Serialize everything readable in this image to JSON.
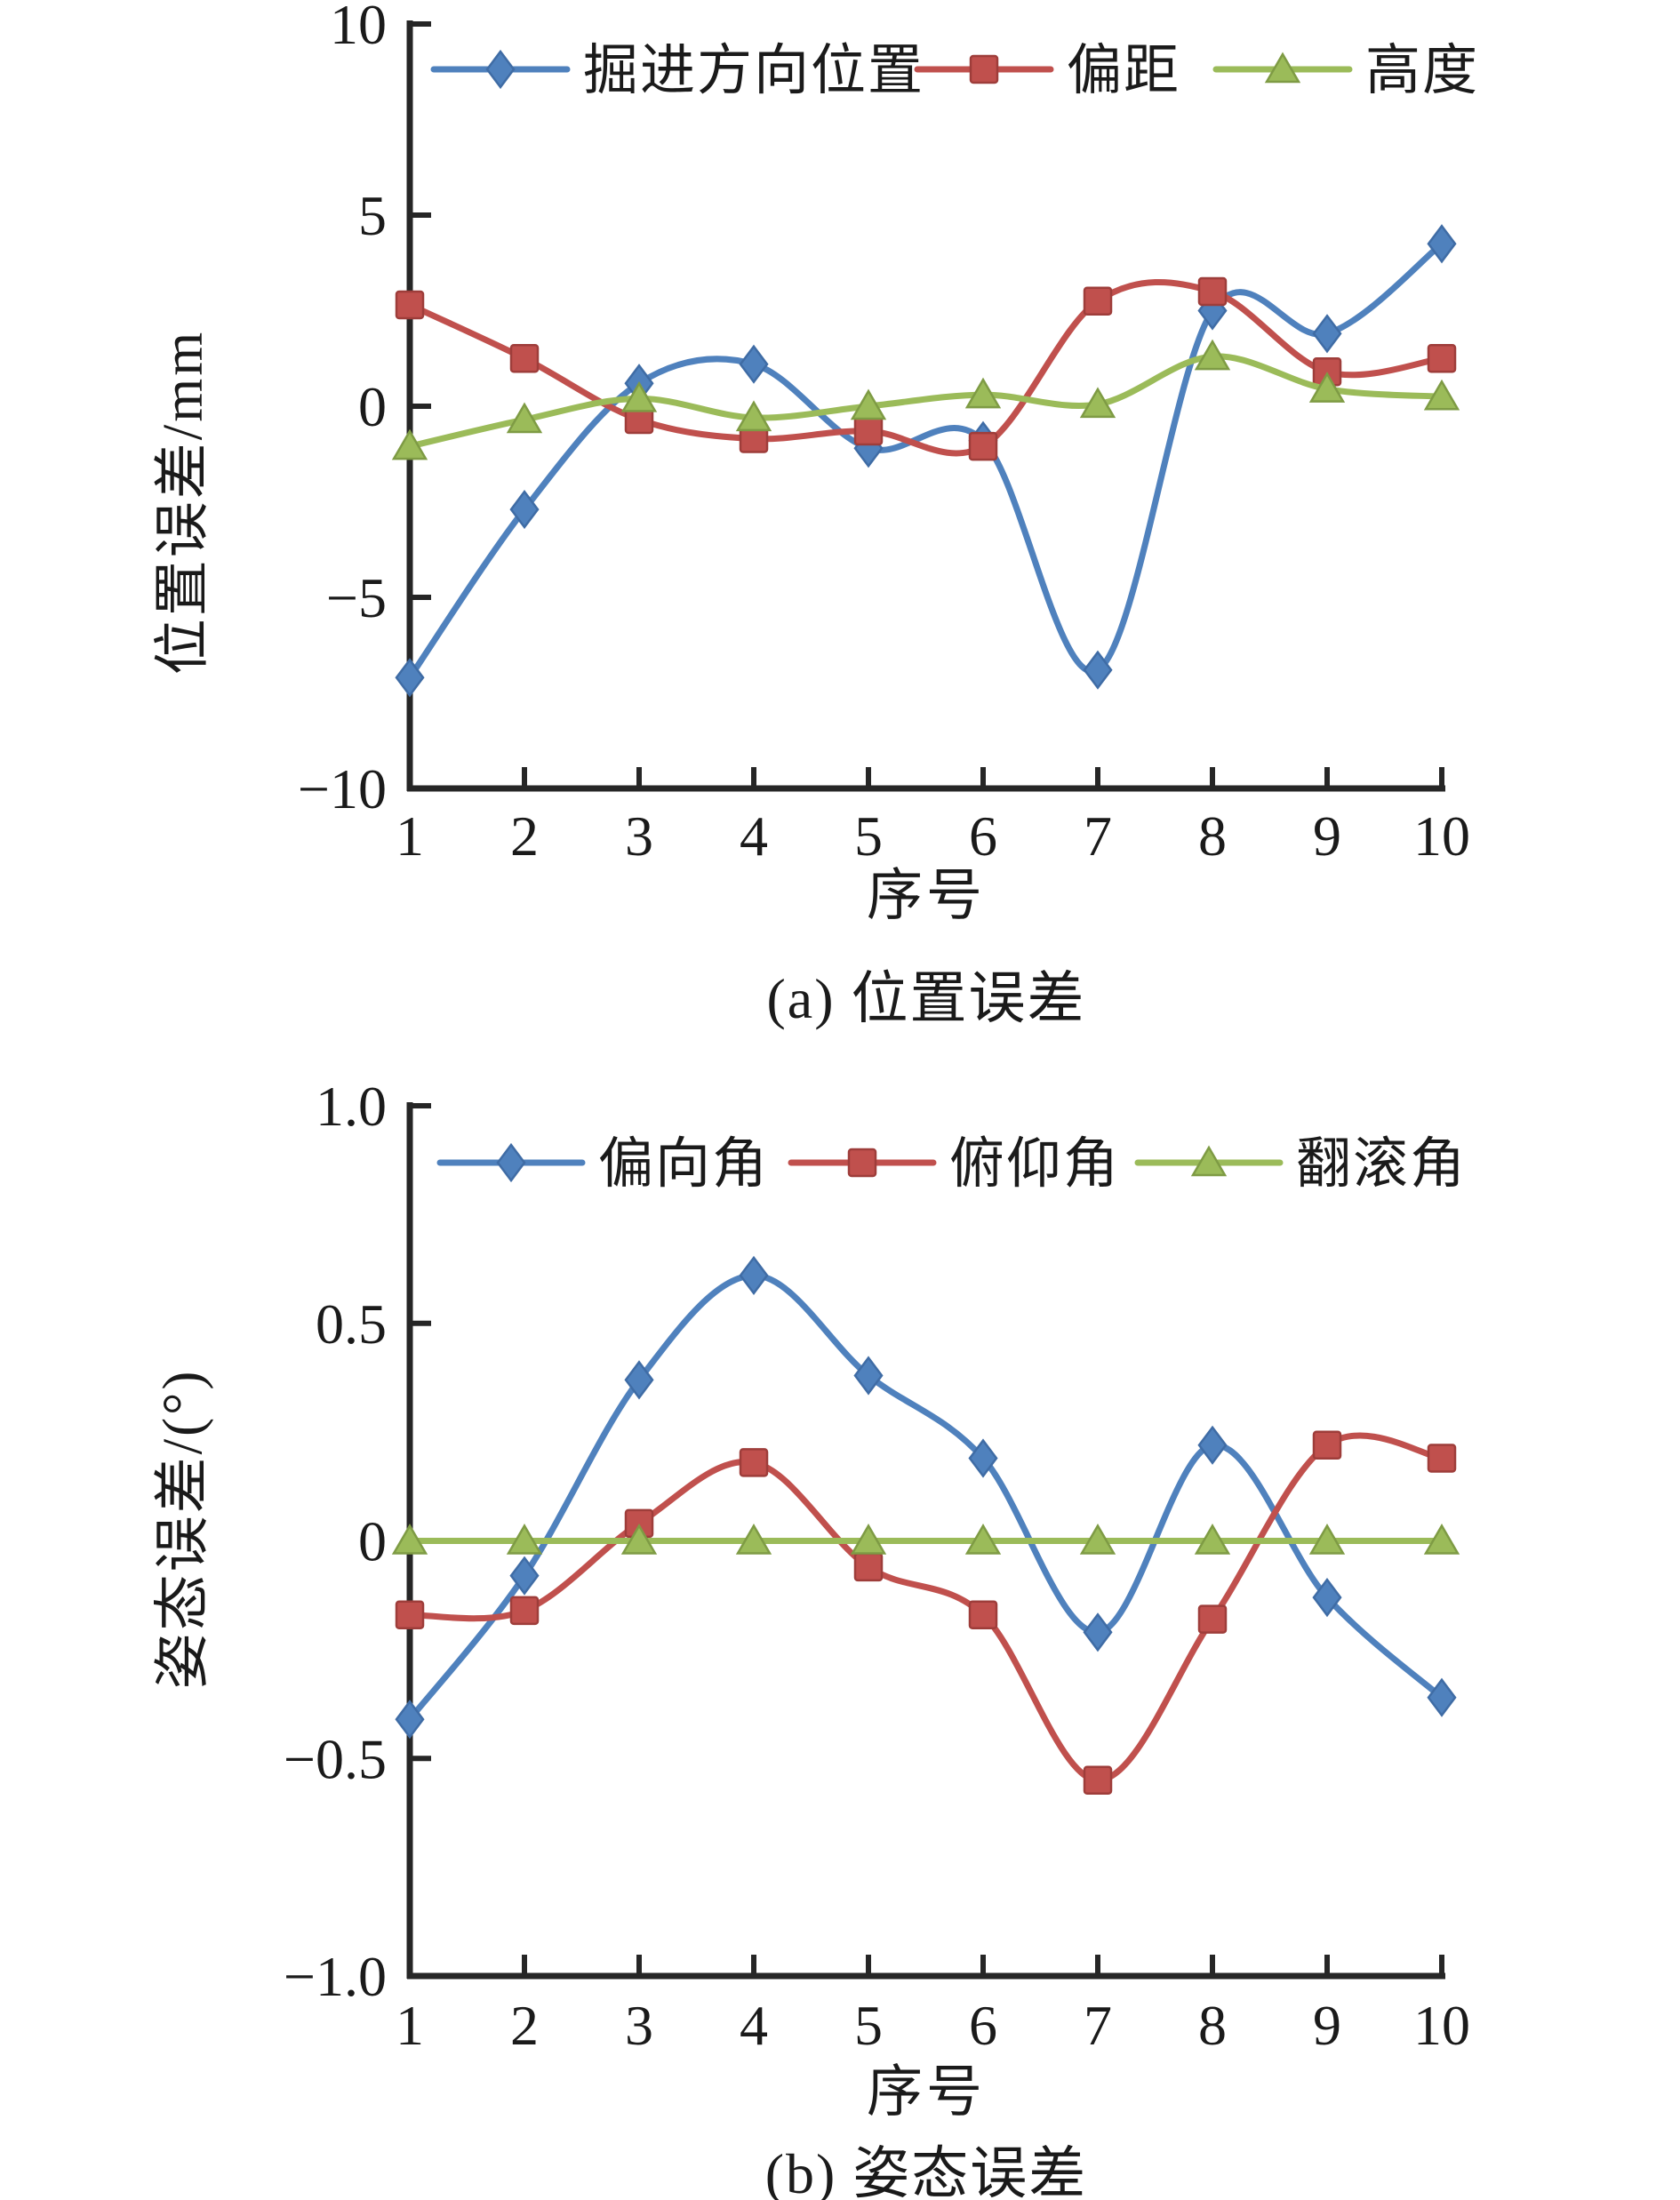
{
  "figure": {
    "background": "#ffffff",
    "axis_color": "#262626",
    "text_color": "#1a1a1a"
  },
  "chart_data": [
    {
      "type": "line",
      "title": "(a) 位置误差",
      "xlabel": "序号",
      "ylabel": "位置误差/mm",
      "x": [
        1,
        2,
        3,
        4,
        5,
        6,
        7,
        8,
        9,
        10
      ],
      "xlim": [
        1,
        10
      ],
      "ylim": [
        -10,
        10
      ],
      "xticks": [
        "1",
        "2",
        "3",
        "4",
        "5",
        "6",
        "7",
        "8",
        "9",
        "10"
      ],
      "ytick_values": [
        10,
        5,
        0,
        -5,
        -10
      ],
      "ytick_labels": [
        "10",
        "5",
        "0",
        "−5",
        "−10"
      ],
      "grid": false,
      "legend_position": "top-inside-horizontal",
      "line_smoothing": true,
      "series": [
        {
          "name": "掘进方向位置",
          "marker": "diamond",
          "color": "#4F81BD",
          "edge": "#3F6CA5",
          "values": [
            -7.1,
            -2.7,
            0.6,
            1.1,
            -1.1,
            -0.9,
            -6.9,
            2.5,
            1.9,
            4.25
          ]
        },
        {
          "name": "偏距",
          "marker": "square",
          "color": "#C0504D",
          "edge": "#9E3D3A",
          "values": [
            2.65,
            1.25,
            -0.35,
            -0.85,
            -0.65,
            -1.05,
            2.75,
            3.0,
            0.9,
            1.25
          ]
        },
        {
          "name": "高度",
          "marker": "triangle",
          "color": "#9BBB59",
          "edge": "#7E9B44",
          "values": [
            -1.05,
            -0.35,
            0.2,
            -0.3,
            0.0,
            0.3,
            0.05,
            1.3,
            0.45,
            0.25
          ]
        }
      ]
    },
    {
      "type": "line",
      "title": "(b) 姿态误差",
      "xlabel": "序号",
      "ylabel": "姿态误差/(°)",
      "x": [
        1,
        2,
        3,
        4,
        5,
        6,
        7,
        8,
        9,
        10
      ],
      "xlim": [
        1,
        10
      ],
      "ylim": [
        -1.0,
        1.0
      ],
      "xticks": [
        "1",
        "2",
        "3",
        "4",
        "5",
        "6",
        "7",
        "8",
        "9",
        "10"
      ],
      "ytick_values": [
        1.0,
        0.5,
        0,
        -0.5,
        -1.0
      ],
      "ytick_labels": [
        "1.0",
        "0.5",
        "0",
        "−0.5",
        "−1.0"
      ],
      "grid": false,
      "legend_position": "top-inside-horizontal",
      "line_smoothing": true,
      "series": [
        {
          "name": "偏向角",
          "marker": "diamond",
          "color": "#4F81BD",
          "edge": "#3F6CA5",
          "values": [
            -0.41,
            -0.08,
            0.37,
            0.61,
            0.38,
            0.19,
            -0.21,
            0.22,
            -0.13,
            -0.36
          ]
        },
        {
          "name": "俯仰角",
          "marker": "square",
          "color": "#C0504D",
          "edge": "#9E3D3A",
          "values": [
            -0.17,
            -0.16,
            0.04,
            0.18,
            -0.06,
            -0.17,
            -0.55,
            -0.18,
            0.22,
            0.19
          ]
        },
        {
          "name": "翻滚角",
          "marker": "triangle",
          "color": "#9BBB59",
          "edge": "#7E9B44",
          "values": [
            0,
            0,
            0,
            0,
            0,
            0,
            0,
            0,
            0,
            0
          ]
        }
      ]
    }
  ]
}
